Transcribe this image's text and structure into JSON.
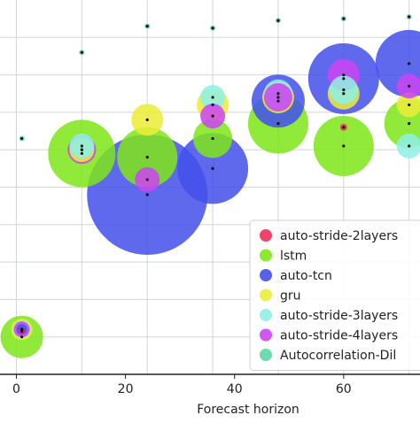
{
  "chart_data": {
    "type": "scatter",
    "subtype": "bubble",
    "title": "",
    "xlabel": "Forecast horizon",
    "ylabel": "",
    "xlim": [
      -3,
      74
    ],
    "ylim": [
      0,
      1
    ],
    "grid": true,
    "xticks": [
      0,
      20,
      40,
      60
    ],
    "ytick_labels_visible": false,
    "legend_position": "lower-right",
    "series": [
      {
        "name": "auto-stride-2layers",
        "color": "#f0305a",
        "points": [
          {
            "x": 1,
            "y": 0.115,
            "size": 3
          },
          {
            "x": 60,
            "y": 0.66,
            "size": 4
          }
        ]
      },
      {
        "name": "lstm",
        "color": "#7fe51a",
        "points": [
          {
            "x": 1,
            "y": 0.1,
            "size": 24
          },
          {
            "x": 12,
            "y": 0.59,
            "size": 38
          },
          {
            "x": 24,
            "y": 0.58,
            "size": 34
          },
          {
            "x": 36,
            "y": 0.63,
            "size": 22
          },
          {
            "x": 48,
            "y": 0.67,
            "size": 34
          },
          {
            "x": 60,
            "y": 0.61,
            "size": 34
          },
          {
            "x": 72,
            "y": 0.67,
            "size": 28
          }
        ]
      },
      {
        "name": "auto-tcn",
        "color": "#4450ea",
        "points": [
          {
            "x": 1,
            "y": 0.12,
            "size": 6
          },
          {
            "x": 24,
            "y": 0.48,
            "size": 68
          },
          {
            "x": 36,
            "y": 0.55,
            "size": 40
          },
          {
            "x": 48,
            "y": 0.73,
            "size": 30
          },
          {
            "x": 60,
            "y": 0.79,
            "size": 40
          },
          {
            "x": 72,
            "y": 0.83,
            "size": 38
          }
        ]
      },
      {
        "name": "gru",
        "color": "#ecec38",
        "points": [
          {
            "x": 1,
            "y": 0.12,
            "size": 12
          },
          {
            "x": 12,
            "y": 0.6,
            "size": 14
          },
          {
            "x": 24,
            "y": 0.68,
            "size": 18
          },
          {
            "x": 36,
            "y": 0.72,
            "size": 18
          },
          {
            "x": 48,
            "y": 0.74,
            "size": 18
          },
          {
            "x": 60,
            "y": 0.75,
            "size": 18
          },
          {
            "x": 72,
            "y": 0.72,
            "size": 14
          }
        ]
      },
      {
        "name": "auto-stride-3layers",
        "color": "#8ef0e6",
        "points": [
          {
            "x": 1,
            "y": 0.12,
            "size": 10
          },
          {
            "x": 12,
            "y": 0.61,
            "size": 14
          },
          {
            "x": 36,
            "y": 0.74,
            "size": 14
          },
          {
            "x": 48,
            "y": 0.75,
            "size": 16
          },
          {
            "x": 60,
            "y": 0.76,
            "size": 16
          },
          {
            "x": 72,
            "y": 0.61,
            "size": 14
          }
        ]
      },
      {
        "name": "auto-stride-4layers",
        "color": "#cc44f2",
        "points": [
          {
            "x": 1,
            "y": 0.12,
            "size": 9
          },
          {
            "x": 12,
            "y": 0.6,
            "size": 16
          },
          {
            "x": 24,
            "y": 0.52,
            "size": 14
          },
          {
            "x": 36,
            "y": 0.69,
            "size": 14
          },
          {
            "x": 48,
            "y": 0.74,
            "size": 16
          },
          {
            "x": 60,
            "y": 0.8,
            "size": 18
          },
          {
            "x": 72,
            "y": 0.77,
            "size": 14
          }
        ]
      },
      {
        "name": "Autocorrelation-Dil",
        "color": "#5fd6a6",
        "points": [
          {
            "x": 1,
            "y": 0.63,
            "size": 3
          },
          {
            "x": 12,
            "y": 0.86,
            "size": 3
          },
          {
            "x": 24,
            "y": 0.93,
            "size": 3
          },
          {
            "x": 36,
            "y": 0.925,
            "size": 3
          },
          {
            "x": 48,
            "y": 0.945,
            "size": 3
          },
          {
            "x": 60,
            "y": 0.95,
            "size": 3
          },
          {
            "x": 72,
            "y": 0.955,
            "size": 3
          }
        ]
      }
    ]
  }
}
